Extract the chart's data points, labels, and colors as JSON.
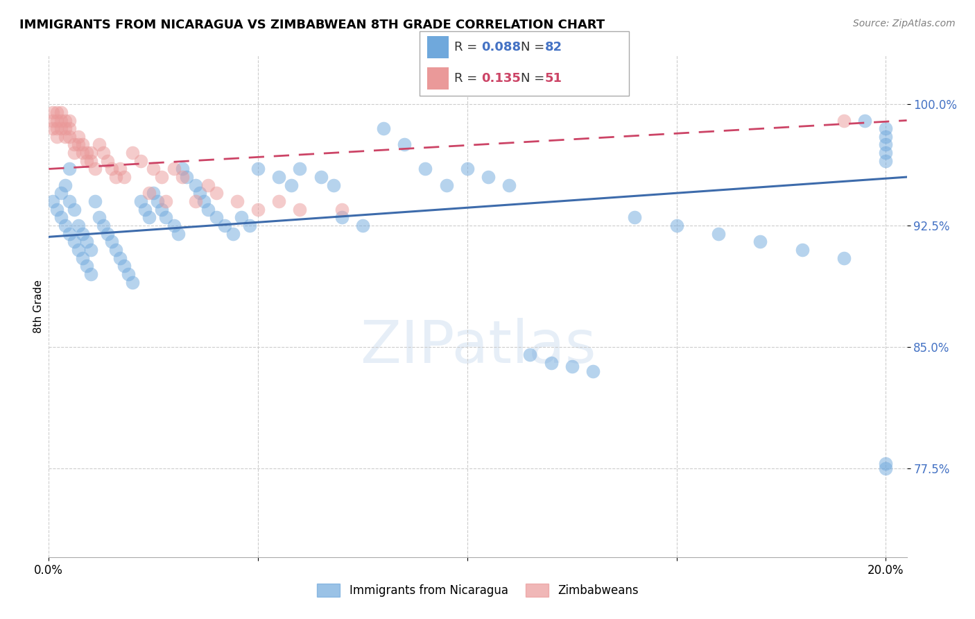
{
  "title": "IMMIGRANTS FROM NICARAGUA VS ZIMBABWEAN 8TH GRADE CORRELATION CHART",
  "source": "Source: ZipAtlas.com",
  "ylabel": "8th Grade",
  "ytick_labels": [
    "77.5%",
    "85.0%",
    "92.5%",
    "100.0%"
  ],
  "ytick_values": [
    0.775,
    0.85,
    0.925,
    1.0
  ],
  "xtick_labels": [
    "0.0%",
    "",
    "",
    "",
    "20.0%"
  ],
  "xtick_values": [
    0.0,
    0.05,
    0.1,
    0.15,
    0.2
  ],
  "xlim": [
    0.0,
    0.205
  ],
  "ylim": [
    0.72,
    1.03
  ],
  "blue_R": 0.088,
  "blue_N": 82,
  "pink_R": 0.135,
  "pink_N": 51,
  "blue_color": "#6fa8dc",
  "pink_color": "#ea9999",
  "blue_line_color": "#3d6bab",
  "pink_line_color": "#cc4466",
  "legend_label_blue": "Immigrants from Nicaragua",
  "legend_label_pink": "Zimbabweans",
  "blue_R_color": "#4472c4",
  "pink_R_color": "#cc4466",
  "blue_x": [
    0.001,
    0.002,
    0.003,
    0.003,
    0.004,
    0.004,
    0.005,
    0.005,
    0.005,
    0.006,
    0.006,
    0.007,
    0.007,
    0.008,
    0.008,
    0.009,
    0.009,
    0.01,
    0.01,
    0.011,
    0.012,
    0.013,
    0.014,
    0.015,
    0.016,
    0.017,
    0.018,
    0.019,
    0.02,
    0.022,
    0.023,
    0.024,
    0.025,
    0.026,
    0.027,
    0.028,
    0.03,
    0.031,
    0.032,
    0.033,
    0.035,
    0.036,
    0.037,
    0.038,
    0.04,
    0.042,
    0.044,
    0.046,
    0.048,
    0.05,
    0.055,
    0.058,
    0.06,
    0.065,
    0.068,
    0.07,
    0.075,
    0.08,
    0.085,
    0.09,
    0.095,
    0.1,
    0.105,
    0.11,
    0.115,
    0.12,
    0.125,
    0.13,
    0.14,
    0.15,
    0.16,
    0.17,
    0.18,
    0.19,
    0.195,
    0.2,
    0.2,
    0.2,
    0.2,
    0.2,
    0.2,
    0.2
  ],
  "blue_y": [
    0.94,
    0.935,
    0.93,
    0.945,
    0.925,
    0.95,
    0.92,
    0.94,
    0.96,
    0.915,
    0.935,
    0.91,
    0.925,
    0.905,
    0.92,
    0.9,
    0.915,
    0.895,
    0.91,
    0.94,
    0.93,
    0.925,
    0.92,
    0.915,
    0.91,
    0.905,
    0.9,
    0.895,
    0.89,
    0.94,
    0.935,
    0.93,
    0.945,
    0.94,
    0.935,
    0.93,
    0.925,
    0.92,
    0.96,
    0.955,
    0.95,
    0.945,
    0.94,
    0.935,
    0.93,
    0.925,
    0.92,
    0.93,
    0.925,
    0.96,
    0.955,
    0.95,
    0.96,
    0.955,
    0.95,
    0.93,
    0.925,
    0.985,
    0.975,
    0.96,
    0.95,
    0.96,
    0.955,
    0.95,
    0.845,
    0.84,
    0.838,
    0.835,
    0.93,
    0.925,
    0.92,
    0.915,
    0.91,
    0.905,
    0.99,
    0.985,
    0.98,
    0.975,
    0.97,
    0.965,
    0.778,
    0.775
  ],
  "pink_x": [
    0.001,
    0.001,
    0.001,
    0.002,
    0.002,
    0.002,
    0.002,
    0.003,
    0.003,
    0.003,
    0.004,
    0.004,
    0.004,
    0.005,
    0.005,
    0.005,
    0.006,
    0.006,
    0.007,
    0.007,
    0.008,
    0.008,
    0.009,
    0.009,
    0.01,
    0.01,
    0.011,
    0.012,
    0.013,
    0.014,
    0.015,
    0.016,
    0.017,
    0.018,
    0.02,
    0.022,
    0.024,
    0.025,
    0.027,
    0.028,
    0.03,
    0.032,
    0.035,
    0.038,
    0.04,
    0.045,
    0.05,
    0.055,
    0.06,
    0.07,
    0.19
  ],
  "pink_y": [
    0.995,
    0.99,
    0.985,
    0.995,
    0.99,
    0.985,
    0.98,
    0.995,
    0.99,
    0.985,
    0.99,
    0.985,
    0.98,
    0.99,
    0.985,
    0.98,
    0.975,
    0.97,
    0.98,
    0.975,
    0.975,
    0.97,
    0.97,
    0.965,
    0.97,
    0.965,
    0.96,
    0.975,
    0.97,
    0.965,
    0.96,
    0.955,
    0.96,
    0.955,
    0.97,
    0.965,
    0.945,
    0.96,
    0.955,
    0.94,
    0.96,
    0.955,
    0.94,
    0.95,
    0.945,
    0.94,
    0.935,
    0.94,
    0.935,
    0.935,
    0.99
  ],
  "blue_line_x": [
    0.0,
    0.205
  ],
  "blue_line_y": [
    0.918,
    0.955
  ],
  "pink_line_x": [
    0.0,
    0.205
  ],
  "pink_line_y": [
    0.96,
    0.99
  ]
}
